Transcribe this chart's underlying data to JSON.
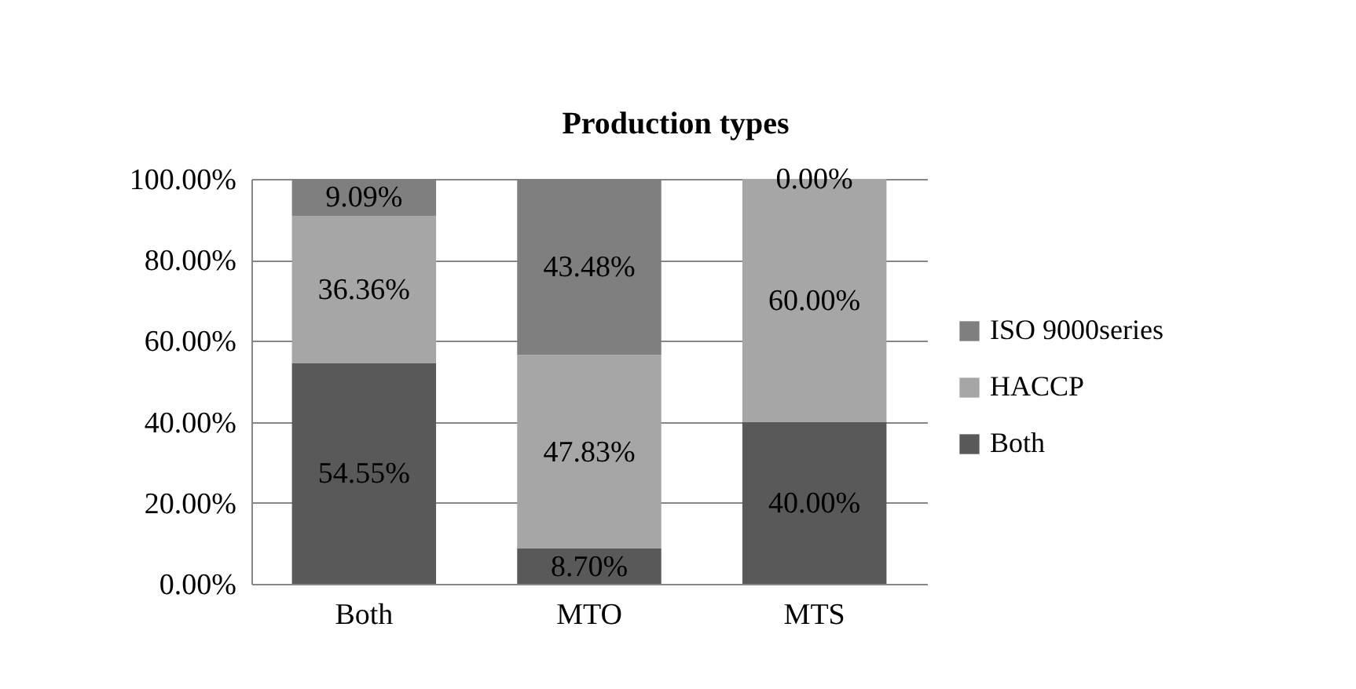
{
  "chart_data": {
    "type": "bar",
    "title": "Production types",
    "stacked": true,
    "categories": [
      "Both",
      "MTO",
      "MTS"
    ],
    "series": [
      {
        "name": "Both",
        "color": "#595959",
        "values": [
          54.55,
          8.7,
          40.0
        ],
        "value_labels": [
          "54.55%",
          "8.70%",
          "40.00%"
        ]
      },
      {
        "name": "HACCP",
        "color": "#a6a6a6",
        "values": [
          36.36,
          47.83,
          60.0
        ],
        "value_labels": [
          "36.36%",
          "47.83%",
          "60.00%"
        ]
      },
      {
        "name": "ISO 9000series",
        "color": "#7f7f7f",
        "values": [
          9.09,
          43.48,
          0.0
        ],
        "value_labels": [
          "9.09%",
          "43.48%",
          "0.00%"
        ]
      }
    ],
    "ylim": [
      0,
      100
    ],
    "yticks": [
      {
        "value": 0,
        "label": "0.00%"
      },
      {
        "value": 20,
        "label": "20.00%"
      },
      {
        "value": 40,
        "label": "40.00%"
      },
      {
        "value": 60,
        "label": "60.00%"
      },
      {
        "value": 80,
        "label": "80.00%"
      },
      {
        "value": 100,
        "label": "100.00%"
      }
    ],
    "grid": "y",
    "legend": "right"
  }
}
